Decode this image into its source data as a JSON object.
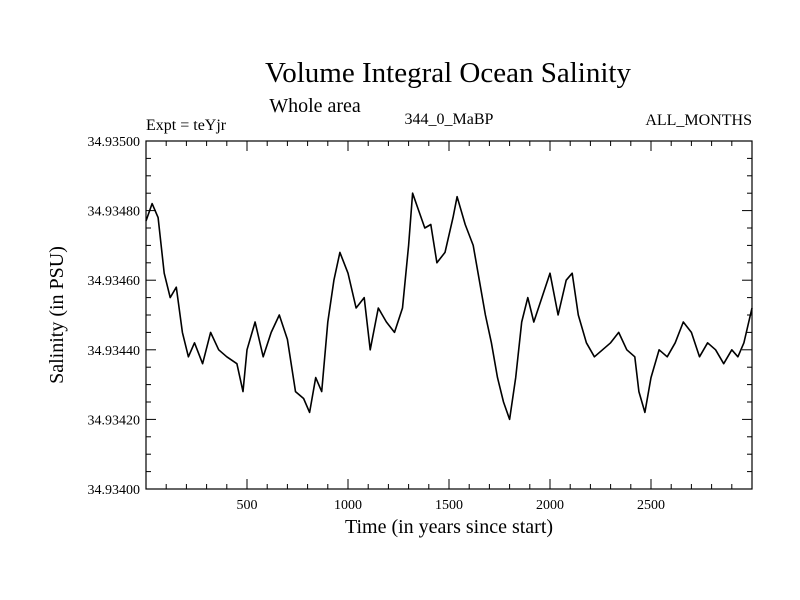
{
  "chart_data": {
    "type": "line",
    "title": "Volume Integral Ocean Salinity",
    "subtitle": "Whole area",
    "expt_label": "Expt = teYjr",
    "center_label": "344_0_MaBP",
    "right_label": "ALL_MONTHS",
    "xlabel": "Time (in years since start)",
    "ylabel": "Salinity (in PSU)",
    "xlim": [
      0,
      3000
    ],
    "ylim": [
      34.934,
      34.935
    ],
    "xticks": [
      500,
      1000,
      1500,
      2000,
      2500
    ],
    "xtick_labels": [
      "500",
      "1000",
      "1500",
      "2000",
      "2500"
    ],
    "yticks": [
      34.934,
      34.9342,
      34.9344,
      34.9346,
      34.9348,
      34.935
    ],
    "ytick_labels": [
      "34.93400",
      "34.93420",
      "34.93440",
      "34.93460",
      "34.93480",
      "34.93500"
    ],
    "grid": false,
    "line_color": "#000000",
    "series": [
      {
        "name": "Salinity",
        "x": [
          0,
          30,
          60,
          90,
          120,
          150,
          180,
          210,
          240,
          280,
          320,
          360,
          400,
          450,
          480,
          500,
          540,
          580,
          620,
          660,
          700,
          740,
          780,
          810,
          840,
          870,
          900,
          930,
          960,
          1000,
          1040,
          1080,
          1110,
          1150,
          1190,
          1230,
          1270,
          1300,
          1320,
          1350,
          1380,
          1410,
          1440,
          1480,
          1520,
          1540,
          1580,
          1620,
          1650,
          1680,
          1710,
          1740,
          1770,
          1800,
          1830,
          1860,
          1890,
          1920,
          1960,
          2000,
          2040,
          2080,
          2110,
          2140,
          2180,
          2220,
          2260,
          2300,
          2340,
          2380,
          2420,
          2440,
          2470,
          2500,
          2540,
          2580,
          2620,
          2660,
          2700,
          2740,
          2780,
          2820,
          2860,
          2900,
          2930,
          2960,
          3000
        ],
        "values": [
          34.93477,
          34.93482,
          34.93478,
          34.93462,
          34.93455,
          34.93458,
          34.93445,
          34.93438,
          34.93442,
          34.93436,
          34.93445,
          34.9344,
          34.93438,
          34.93436,
          34.93428,
          34.9344,
          34.93448,
          34.93438,
          34.93445,
          34.9345,
          34.93443,
          34.93428,
          34.93426,
          34.93422,
          34.93432,
          34.93428,
          34.93448,
          34.9346,
          34.93468,
          34.93462,
          34.93452,
          34.93455,
          34.9344,
          34.93452,
          34.93448,
          34.93445,
          34.93452,
          34.9347,
          34.93485,
          34.9348,
          34.93475,
          34.93476,
          34.93465,
          34.93468,
          34.93478,
          34.93484,
          34.93476,
          34.9347,
          34.9346,
          34.9345,
          34.93442,
          34.93432,
          34.93425,
          34.9342,
          34.93432,
          34.93448,
          34.93455,
          34.93448,
          34.93455,
          34.93462,
          34.9345,
          34.9346,
          34.93462,
          34.9345,
          34.93442,
          34.93438,
          34.9344,
          34.93442,
          34.93445,
          34.9344,
          34.93438,
          34.93428,
          34.93422,
          34.93432,
          34.9344,
          34.93438,
          34.93442,
          34.93448,
          34.93445,
          34.93438,
          34.93442,
          34.9344,
          34.93436,
          34.9344,
          34.93438,
          34.93442,
          34.93452
        ]
      }
    ]
  }
}
